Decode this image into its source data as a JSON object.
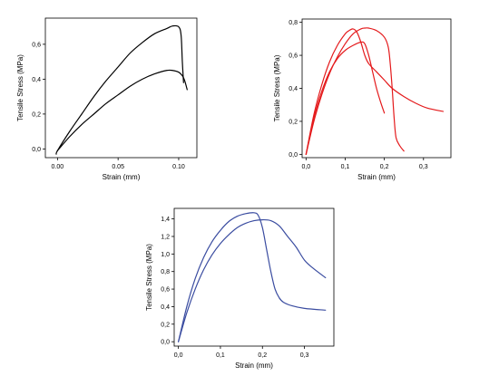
{
  "chart_data": [
    {
      "type": "line",
      "xlabel": "Strain (mm)",
      "ylabel": "Tensile Stress (MPa)",
      "xlim": [
        -0.01,
        0.115
      ],
      "ylim": [
        -0.05,
        0.75
      ],
      "x_ticks": [
        0.0,
        0.05,
        0.1
      ],
      "x_tick_labels": [
        "0.00",
        "0.05",
        "0.10"
      ],
      "y_ticks": [
        0.0,
        0.2,
        0.4,
        0.6
      ],
      "y_tick_labels": [
        "0,0",
        "0,2",
        "0,4",
        "0,6"
      ],
      "grid": false,
      "color": "#000000",
      "series": [
        {
          "x": [
            -0.001,
            0.0,
            0.01,
            0.02,
            0.03,
            0.04,
            0.05,
            0.06,
            0.07,
            0.08,
            0.09,
            0.095,
            0.1,
            0.102,
            0.103,
            0.104
          ],
          "y": [
            -0.03,
            -0.01,
            0.1,
            0.2,
            0.3,
            0.39,
            0.47,
            0.55,
            0.61,
            0.66,
            0.69,
            0.705,
            0.7,
            0.65,
            0.5,
            0.38
          ]
        },
        {
          "x": [
            0.0,
            0.01,
            0.02,
            0.03,
            0.04,
            0.05,
            0.06,
            0.07,
            0.08,
            0.09,
            0.095,
            0.1,
            0.103,
            0.105,
            0.107
          ],
          "y": [
            -0.01,
            0.07,
            0.14,
            0.2,
            0.26,
            0.31,
            0.36,
            0.4,
            0.43,
            0.45,
            0.45,
            0.44,
            0.42,
            0.39,
            0.34
          ]
        }
      ]
    },
    {
      "type": "line",
      "xlabel": "Strain (mm)",
      "ylabel": "Tensile Stress (MPa)",
      "xlim": [
        -0.01,
        0.37
      ],
      "ylim": [
        -0.02,
        0.82
      ],
      "x_ticks": [
        0.0,
        0.1,
        0.2,
        0.3
      ],
      "x_tick_labels": [
        "0,0",
        "0,1",
        "0,2",
        "0,3"
      ],
      "y_ticks": [
        0.0,
        0.2,
        0.4,
        0.6,
        0.8
      ],
      "y_tick_labels": [
        "0,0",
        "0,2",
        "0,4",
        "0,6",
        "0,8"
      ],
      "grid": false,
      "color": "#e41a1c",
      "series": [
        {
          "x": [
            0.0,
            0.02,
            0.04,
            0.06,
            0.08,
            0.1,
            0.11,
            0.12,
            0.13,
            0.14,
            0.15,
            0.16,
            0.18,
            0.2,
            0.22,
            0.25,
            0.28,
            0.31,
            0.35
          ],
          "y": [
            0.0,
            0.24,
            0.42,
            0.56,
            0.66,
            0.73,
            0.75,
            0.76,
            0.74,
            0.68,
            0.6,
            0.55,
            0.5,
            0.45,
            0.4,
            0.35,
            0.31,
            0.28,
            0.26
          ]
        },
        {
          "x": [
            0.0,
            0.02,
            0.04,
            0.06,
            0.08,
            0.1,
            0.12,
            0.14,
            0.15,
            0.16,
            0.18,
            0.2,
            0.21,
            0.215,
            0.22,
            0.225,
            0.23,
            0.24,
            0.25
          ],
          "y": [
            0.0,
            0.2,
            0.36,
            0.49,
            0.59,
            0.67,
            0.73,
            0.76,
            0.765,
            0.765,
            0.75,
            0.71,
            0.65,
            0.55,
            0.4,
            0.22,
            0.1,
            0.05,
            0.02
          ]
        },
        {
          "x": [
            0.0,
            0.02,
            0.04,
            0.06,
            0.08,
            0.1,
            0.12,
            0.14,
            0.15,
            0.16,
            0.17,
            0.18,
            0.19,
            0.2
          ],
          "y": [
            0.0,
            0.22,
            0.38,
            0.5,
            0.58,
            0.63,
            0.66,
            0.68,
            0.67,
            0.6,
            0.5,
            0.4,
            0.32,
            0.25
          ]
        }
      ]
    },
    {
      "type": "line",
      "xlabel": "Strain (mm)",
      "ylabel": "Tensile Stress (MPa)",
      "xlim": [
        -0.01,
        0.37
      ],
      "ylim": [
        -0.05,
        1.52
      ],
      "x_ticks": [
        0.0,
        0.1,
        0.2,
        0.3
      ],
      "x_tick_labels": [
        "0,0",
        "0,1",
        "0,2",
        "0,3"
      ],
      "y_ticks": [
        0.0,
        0.2,
        0.4,
        0.6,
        0.8,
        1.0,
        1.2,
        1.4
      ],
      "y_tick_labels": [
        "0,0",
        "0,2",
        "0,4",
        "0,6",
        "0,8",
        "1,0",
        "1,2",
        "1,4"
      ],
      "grid": false,
      "color": "#3a4ca0",
      "series": [
        {
          "x": [
            0.0,
            0.02,
            0.04,
            0.06,
            0.08,
            0.1,
            0.12,
            0.14,
            0.16,
            0.18,
            0.19,
            0.2,
            0.21,
            0.22,
            0.23,
            0.24,
            0.25,
            0.27,
            0.3,
            0.35
          ],
          "y": [
            0.0,
            0.4,
            0.72,
            0.96,
            1.14,
            1.27,
            1.37,
            1.43,
            1.46,
            1.47,
            1.44,
            1.3,
            1.05,
            0.8,
            0.6,
            0.5,
            0.45,
            0.41,
            0.38,
            0.36
          ]
        },
        {
          "x": [
            0.0,
            0.02,
            0.04,
            0.06,
            0.08,
            0.1,
            0.12,
            0.14,
            0.16,
            0.18,
            0.2,
            0.22,
            0.24,
            0.26,
            0.28,
            0.3,
            0.32,
            0.35
          ],
          "y": [
            0.0,
            0.33,
            0.6,
            0.82,
            0.99,
            1.12,
            1.22,
            1.3,
            1.35,
            1.38,
            1.39,
            1.38,
            1.32,
            1.2,
            1.08,
            0.93,
            0.84,
            0.73
          ]
        }
      ]
    }
  ]
}
